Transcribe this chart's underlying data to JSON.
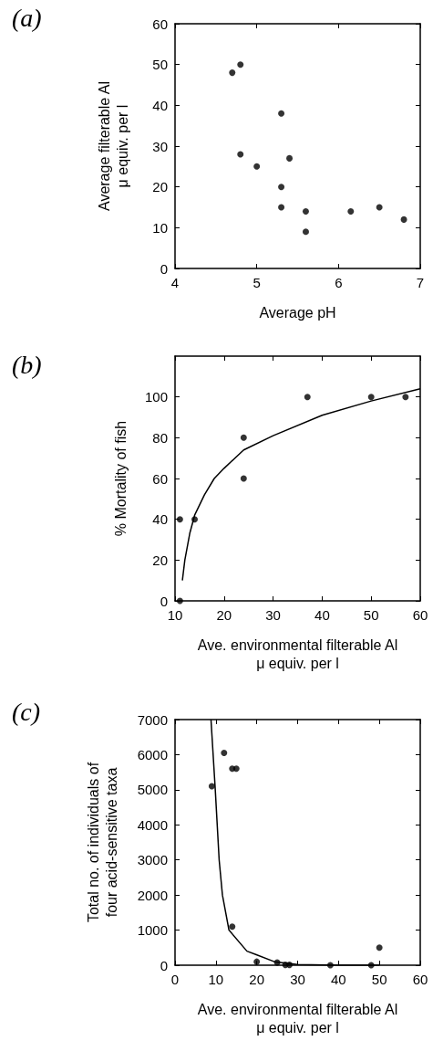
{
  "chart_data": [
    {
      "type": "scatter",
      "title": "(a)",
      "xlabel": "Average pH",
      "ylabel": "Average filterable Al\nμ equiv. per l",
      "xlim": [
        4,
        7
      ],
      "xticks": [
        4,
        5,
        6,
        7
      ],
      "ylim": [
        0,
        60
      ],
      "yticks": [
        0,
        10,
        20,
        30,
        40,
        50,
        60
      ],
      "grid": false,
      "marker": "circle",
      "series": [
        {
          "color": "#000000",
          "x": [
            4.7,
            4.8,
            4.8,
            5.0,
            5.3,
            5.4,
            5.3,
            5.3,
            5.6,
            5.6,
            6.15,
            6.5,
            6.8
          ],
          "values": [
            48,
            50,
            28,
            25,
            38,
            27,
            20,
            15,
            14,
            9,
            14,
            15,
            12
          ]
        }
      ]
    },
    {
      "type": "scatter",
      "title": "(b)",
      "xlabel": "Ave. environmental filterable Al\nμ equiv. per l",
      "ylabel": "% Mortality of fish",
      "xlim": [
        10,
        60
      ],
      "xticks": [
        10,
        20,
        30,
        40,
        50,
        60
      ],
      "ylim": [
        0,
        120
      ],
      "yticks": [
        0,
        20,
        40,
        60,
        80,
        100
      ],
      "grid": false,
      "marker": "circle",
      "series": [
        {
          "color": "#000000",
          "x": [
            11,
            11,
            14,
            24,
            24,
            37,
            50,
            57
          ],
          "values": [
            40,
            0,
            40,
            80,
            60,
            100,
            100,
            100
          ]
        },
        {
          "type": "line",
          "color": "#000000",
          "marker": "none",
          "line_style": "solid",
          "x": [
            11.5,
            12,
            13,
            14,
            16,
            18,
            20,
            24,
            30,
            40,
            50,
            60
          ],
          "values": [
            10,
            20,
            33,
            42,
            52,
            60,
            65,
            74,
            81,
            91,
            98,
            104
          ]
        }
      ]
    },
    {
      "type": "scatter",
      "title": "(c)",
      "xlabel": "Ave. environmental filterable Al\nμ equiv. per l",
      "ylabel": "Total no. of individuals of\nfour acid-sensitive taxa",
      "xlim": [
        0,
        60
      ],
      "xticks": [
        0,
        10,
        20,
        30,
        40,
        50,
        60
      ],
      "ylim": [
        0,
        7000
      ],
      "yticks": [
        0,
        1000,
        2000,
        3000,
        4000,
        5000,
        6000,
        7000
      ],
      "grid": false,
      "marker": "circle",
      "series": [
        {
          "color": "#000000",
          "x": [
            9,
            12,
            14,
            15,
            14,
            20,
            25,
            27,
            28,
            38,
            48,
            50
          ],
          "values": [
            5100,
            6050,
            5600,
            5600,
            1100,
            100,
            80,
            10,
            10,
            0,
            0,
            500
          ]
        },
        {
          "type": "line",
          "color": "#000000",
          "marker": "none",
          "line_style": "solid",
          "x": [
            8.8,
            9.85,
            10.8,
            11.6,
            13.2,
            17.6,
            19.9,
            24.3,
            30,
            40,
            50
          ],
          "values": [
            7000,
            5000,
            3000,
            2000,
            1000,
            400,
            300,
            100,
            20,
            0,
            0
          ]
        }
      ]
    }
  ]
}
